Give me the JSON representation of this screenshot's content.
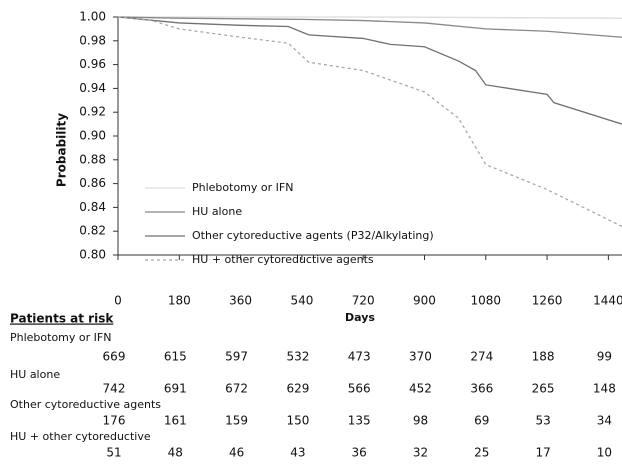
{
  "chart_data": {
    "type": "line",
    "x_label": "Days",
    "y_label": "Probability",
    "xlim": [
      0,
      1480
    ],
    "ylim": [
      0.8,
      1.0
    ],
    "xticks": [
      0,
      180,
      360,
      540,
      720,
      900,
      1080,
      1260,
      1440
    ],
    "yticks": [
      {
        "value": 1.0,
        "label": "1.00"
      },
      {
        "value": 0.98,
        "label": "0.98"
      },
      {
        "value": 0.96,
        "label": "0.96"
      },
      {
        "value": 0.94,
        "label": "0.94"
      },
      {
        "value": 0.92,
        "label": "0.92"
      },
      {
        "value": 0.9,
        "label": "0.90"
      },
      {
        "value": 0.88,
        "label": "0.88"
      },
      {
        "value": 0.86,
        "label": "0.86"
      },
      {
        "value": 0.84,
        "label": "0.84"
      },
      {
        "value": 0.82,
        "label": "0.82"
      },
      {
        "value": 0.8,
        "label": "0.80"
      }
    ],
    "series": [
      {
        "name": "Phlebotomy or IFN",
        "color": "#dcdcdc",
        "dash": false,
        "x": [
          0,
          720,
          1480
        ],
        "values": [
          1.0,
          1.0,
          0.999
        ]
      },
      {
        "name": "HU alone",
        "color": "#888888",
        "dash": false,
        "x": [
          0,
          180,
          540,
          720,
          900,
          1080,
          1260,
          1480
        ],
        "values": [
          1.0,
          0.999,
          0.998,
          0.997,
          0.995,
          0.99,
          0.988,
          0.983
        ]
      },
      {
        "name": "Other cytoreductive agents (P32/Alkylating)",
        "color": "#707070",
        "dash": false,
        "x": [
          0,
          180,
          360,
          500,
          560,
          720,
          800,
          900,
          1000,
          1050,
          1080,
          1260,
          1280,
          1480
        ],
        "values": [
          1.0,
          0.995,
          0.993,
          0.992,
          0.985,
          0.982,
          0.977,
          0.975,
          0.963,
          0.955,
          0.943,
          0.935,
          0.928,
          0.91
        ]
      },
      {
        "name": "HU + other cytoreductive agents",
        "color": "#a8a8a8",
        "dash": true,
        "x": [
          0,
          100,
          180,
          360,
          500,
          560,
          720,
          900,
          1000,
          1080,
          1260,
          1480
        ],
        "values": [
          1.0,
          0.997,
          0.99,
          0.983,
          0.978,
          0.962,
          0.955,
          0.937,
          0.915,
          0.876,
          0.855,
          0.824
        ]
      }
    ],
    "risk_table": {
      "title": "Patients at risk",
      "rows": [
        {
          "name": "Phlebotomy or IFN",
          "values": [
            669,
            615,
            597,
            532,
            473,
            370,
            274,
            188,
            99
          ]
        },
        {
          "name": "HU alone",
          "values": [
            742,
            691,
            672,
            629,
            566,
            452,
            366,
            265,
            148
          ]
        },
        {
          "name": "Other cytoreductive agents",
          "values": [
            176,
            161,
            159,
            150,
            135,
            98,
            69,
            53,
            34
          ]
        },
        {
          "name": "HU + other cytoreductive",
          "values": [
            51,
            48,
            46,
            43,
            36,
            32,
            25,
            17,
            10
          ]
        }
      ]
    }
  }
}
